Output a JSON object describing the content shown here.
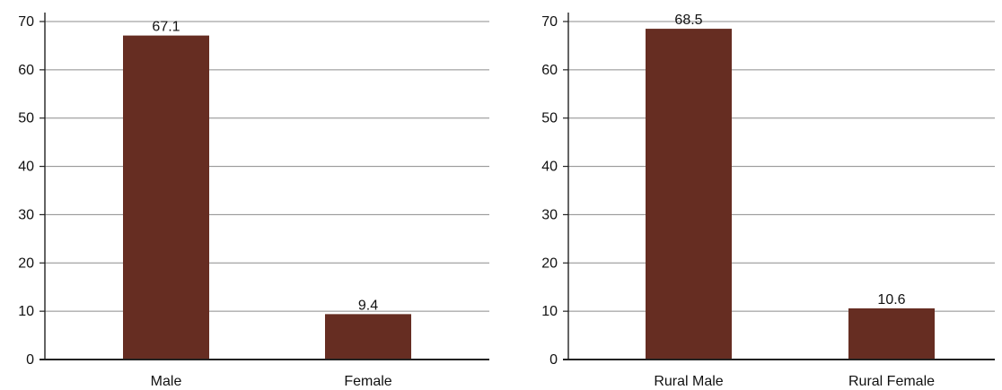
{
  "chart_data": [
    {
      "type": "bar",
      "categories": [
        "Male",
        "Female"
      ],
      "values": [
        67.1,
        9.4
      ],
      "data_labels": [
        "67.1",
        "9.4"
      ],
      "ylim": [
        0,
        70
      ],
      "yticks": [
        "0",
        "10",
        "20",
        "30",
        "40",
        "50",
        "60",
        "70"
      ],
      "grid": true,
      "bar_color": "#662d22"
    },
    {
      "type": "bar",
      "categories": [
        "Rural Male",
        "Rural Female"
      ],
      "values": [
        68.5,
        10.6
      ],
      "data_labels": [
        "68.5",
        "10.6"
      ],
      "ylim": [
        0,
        70
      ],
      "yticks": [
        "0",
        "10",
        "20",
        "30",
        "40",
        "50",
        "60",
        "70"
      ],
      "grid": true,
      "bar_color": "#662d22"
    }
  ]
}
